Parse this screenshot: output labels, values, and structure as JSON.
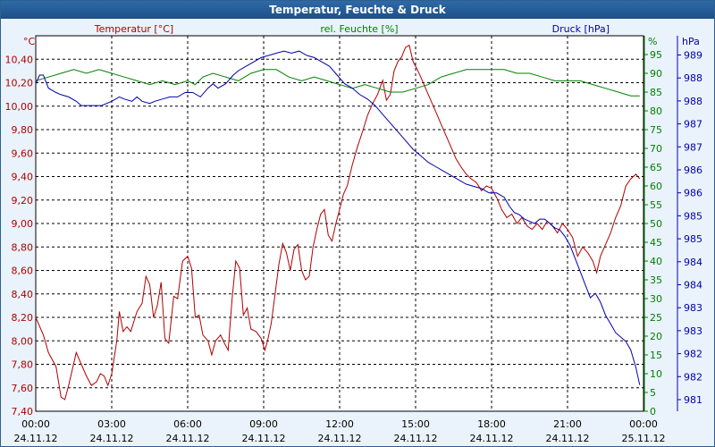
{
  "window": {
    "title": "Temperatur, Feuchte & Druck"
  },
  "chart_data": {
    "type": "line",
    "title": "Temperatur, Feuchte & Druck",
    "colors": {
      "temperature": "#b00000",
      "humidity": "#008000",
      "pressure": "#0000b0",
      "grid": "#000000",
      "background": "#ffffff"
    },
    "axes": {
      "temperature": {
        "label": "Temperatur [°C]",
        "unit": "°C",
        "range": [
          7.4,
          10.6
        ],
        "ticks": [
          "7,40",
          "7,60",
          "7,80",
          "8,00",
          "8,20",
          "8,40",
          "8,60",
          "8,80",
          "9,00",
          "9,20",
          "9,40",
          "9,60",
          "9,80",
          "10,00",
          "10,20",
          "10,40"
        ]
      },
      "humidity": {
        "label": "rel. Feuchte [%]",
        "unit": "%",
        "range": [
          0,
          100
        ],
        "ticks": [
          "0",
          "5",
          "10",
          "15",
          "20",
          "25",
          "30",
          "35",
          "40",
          "45",
          "50",
          "55",
          "60",
          "65",
          "70",
          "75",
          "80",
          "85",
          "90",
          "95"
        ]
      },
      "pressure": {
        "label": "Druck [hPa]",
        "unit": "hPa",
        "range": [
          980.6,
          989.2
        ],
        "ticks": [
          "981",
          "982",
          "982",
          "983",
          "983",
          "984",
          "984",
          "985",
          "985",
          "986",
          "986",
          "987",
          "987",
          "988",
          "988",
          "989"
        ]
      }
    },
    "x_ticks": [
      {
        "time": "00:00",
        "date": "24.11.12"
      },
      {
        "time": "03:00",
        "date": "24.11.12"
      },
      {
        "time": "06:00",
        "date": "24.11.12"
      },
      {
        "time": "09:00",
        "date": "24.11.12"
      },
      {
        "time": "12:00",
        "date": "24.11.12"
      },
      {
        "time": "15:00",
        "date": "24.11.12"
      },
      {
        "time": "18:00",
        "date": "24.11.12"
      },
      {
        "time": "21:00",
        "date": "24.11.12"
      },
      {
        "time": "00:00",
        "date": "25.11.12"
      }
    ],
    "x_range_hours": [
      0,
      24
    ],
    "series": [
      {
        "name": "Temperatur",
        "axis": "temperature",
        "points": [
          [
            0,
            8.2
          ],
          [
            0.3,
            8.05
          ],
          [
            0.5,
            7.9
          ],
          [
            0.8,
            7.78
          ],
          [
            1.0,
            7.52
          ],
          [
            1.15,
            7.5
          ],
          [
            1.3,
            7.62
          ],
          [
            1.6,
            7.9
          ],
          [
            1.8,
            7.8
          ],
          [
            2.0,
            7.7
          ],
          [
            2.2,
            7.62
          ],
          [
            2.4,
            7.65
          ],
          [
            2.55,
            7.72
          ],
          [
            2.7,
            7.7
          ],
          [
            2.85,
            7.62
          ],
          [
            3.0,
            7.72
          ],
          [
            3.2,
            8.0
          ],
          [
            3.3,
            8.25
          ],
          [
            3.45,
            8.08
          ],
          [
            3.6,
            8.12
          ],
          [
            3.75,
            8.08
          ],
          [
            4.0,
            8.25
          ],
          [
            4.2,
            8.32
          ],
          [
            4.35,
            8.55
          ],
          [
            4.5,
            8.48
          ],
          [
            4.65,
            8.2
          ],
          [
            4.8,
            8.3
          ],
          [
            4.95,
            8.5
          ],
          [
            5.1,
            8.02
          ],
          [
            5.25,
            7.98
          ],
          [
            5.45,
            8.38
          ],
          [
            5.6,
            8.36
          ],
          [
            5.8,
            8.68
          ],
          [
            6.0,
            8.72
          ],
          [
            6.15,
            8.62
          ],
          [
            6.3,
            8.2
          ],
          [
            6.45,
            8.22
          ],
          [
            6.6,
            8.05
          ],
          [
            6.8,
            8.0
          ],
          [
            6.95,
            7.88
          ],
          [
            7.1,
            8.0
          ],
          [
            7.3,
            8.05
          ],
          [
            7.45,
            7.98
          ],
          [
            7.6,
            7.92
          ],
          [
            7.75,
            8.35
          ],
          [
            7.9,
            8.68
          ],
          [
            8.05,
            8.62
          ],
          [
            8.2,
            8.22
          ],
          [
            8.35,
            8.28
          ],
          [
            8.5,
            8.1
          ],
          [
            8.7,
            8.08
          ],
          [
            8.9,
            8.02
          ],
          [
            9.05,
            7.92
          ],
          [
            9.15,
            8.0
          ],
          [
            9.3,
            8.15
          ],
          [
            9.45,
            8.4
          ],
          [
            9.6,
            8.65
          ],
          [
            9.75,
            8.83
          ],
          [
            9.9,
            8.75
          ],
          [
            10.05,
            8.6
          ],
          [
            10.2,
            8.78
          ],
          [
            10.35,
            8.82
          ],
          [
            10.5,
            8.6
          ],
          [
            10.65,
            8.52
          ],
          [
            10.8,
            8.55
          ],
          [
            10.95,
            8.8
          ],
          [
            11.1,
            8.95
          ],
          [
            11.25,
            9.08
          ],
          [
            11.4,
            9.12
          ],
          [
            11.55,
            8.9
          ],
          [
            11.7,
            8.85
          ],
          [
            11.85,
            9.0
          ],
          [
            12.0,
            9.12
          ],
          [
            12.15,
            9.25
          ],
          [
            12.3,
            9.32
          ],
          [
            12.5,
            9.5
          ],
          [
            12.7,
            9.65
          ],
          [
            12.9,
            9.78
          ],
          [
            13.1,
            9.92
          ],
          [
            13.3,
            10.02
          ],
          [
            13.5,
            10.1
          ],
          [
            13.7,
            10.22
          ],
          [
            13.85,
            10.05
          ],
          [
            14.0,
            10.1
          ],
          [
            14.15,
            10.3
          ],
          [
            14.3,
            10.38
          ],
          [
            14.45,
            10.42
          ],
          [
            14.6,
            10.5
          ],
          [
            14.75,
            10.52
          ],
          [
            14.9,
            10.38
          ],
          [
            15.05,
            10.32
          ],
          [
            15.2,
            10.25
          ],
          [
            15.4,
            10.15
          ],
          [
            15.6,
            10.05
          ],
          [
            15.8,
            9.95
          ],
          [
            16.0,
            9.85
          ],
          [
            16.2,
            9.75
          ],
          [
            16.4,
            9.65
          ],
          [
            16.6,
            9.55
          ],
          [
            16.8,
            9.48
          ],
          [
            17.0,
            9.42
          ],
          [
            17.2,
            9.38
          ],
          [
            17.4,
            9.35
          ],
          [
            17.6,
            9.28
          ],
          [
            17.8,
            9.32
          ],
          [
            18.0,
            9.3
          ],
          [
            18.2,
            9.22
          ],
          [
            18.4,
            9.12
          ],
          [
            18.6,
            9.05
          ],
          [
            18.8,
            9.08
          ],
          [
            19.0,
            9.0
          ],
          [
            19.2,
            9.05
          ],
          [
            19.4,
            8.98
          ],
          [
            19.6,
            8.95
          ],
          [
            19.8,
            9.0
          ],
          [
            20.0,
            8.95
          ],
          [
            20.2,
            9.02
          ],
          [
            20.4,
            8.98
          ],
          [
            20.6,
            8.92
          ],
          [
            20.8,
            9.0
          ],
          [
            21.0,
            8.95
          ],
          [
            21.2,
            8.88
          ],
          [
            21.4,
            8.72
          ],
          [
            21.6,
            8.8
          ],
          [
            21.8,
            8.75
          ],
          [
            22.0,
            8.68
          ],
          [
            22.15,
            8.58
          ],
          [
            22.3,
            8.72
          ],
          [
            22.5,
            8.82
          ],
          [
            22.7,
            8.92
          ],
          [
            22.9,
            9.05
          ],
          [
            23.1,
            9.15
          ],
          [
            23.3,
            9.32
          ],
          [
            23.5,
            9.38
          ],
          [
            23.7,
            9.42
          ],
          [
            23.85,
            9.38
          ]
        ]
      },
      {
        "name": "rel. Feuchte",
        "axis": "humidity",
        "points": [
          [
            0,
            88
          ],
          [
            0.5,
            89
          ],
          [
            1.0,
            90
          ],
          [
            1.5,
            91
          ],
          [
            2.0,
            90
          ],
          [
            2.5,
            91
          ],
          [
            3.0,
            90
          ],
          [
            3.5,
            89
          ],
          [
            4.0,
            88
          ],
          [
            4.5,
            87
          ],
          [
            5.0,
            88
          ],
          [
            5.5,
            87
          ],
          [
            6.0,
            88
          ],
          [
            6.3,
            87
          ],
          [
            6.6,
            89
          ],
          [
            7.0,
            90
          ],
          [
            7.5,
            89
          ],
          [
            8.0,
            88
          ],
          [
            8.5,
            90
          ],
          [
            9.0,
            91
          ],
          [
            9.5,
            91
          ],
          [
            10.0,
            89
          ],
          [
            10.5,
            88
          ],
          [
            11.0,
            89
          ],
          [
            11.5,
            88
          ],
          [
            12.0,
            87
          ],
          [
            12.5,
            86
          ],
          [
            13.0,
            87
          ],
          [
            13.5,
            86
          ],
          [
            14.0,
            85
          ],
          [
            14.5,
            85
          ],
          [
            15.0,
            86
          ],
          [
            15.5,
            87
          ],
          [
            16.0,
            89
          ],
          [
            16.5,
            90
          ],
          [
            17.0,
            91
          ],
          [
            17.5,
            91
          ],
          [
            18.0,
            91
          ],
          [
            18.5,
            91
          ],
          [
            19.0,
            90
          ],
          [
            19.5,
            90
          ],
          [
            20.0,
            89
          ],
          [
            20.5,
            88
          ],
          [
            21.0,
            88
          ],
          [
            21.5,
            88
          ],
          [
            22.0,
            87
          ],
          [
            22.5,
            86
          ],
          [
            23.0,
            85
          ],
          [
            23.5,
            84
          ],
          [
            23.85,
            84
          ]
        ]
      },
      {
        "name": "Druck",
        "axis": "pressure",
        "points": [
          [
            0,
            988.1
          ],
          [
            0.15,
            988.3
          ],
          [
            0.3,
            988.3
          ],
          [
            0.5,
            988.0
          ],
          [
            0.8,
            987.9
          ],
          [
            1.0,
            987.85
          ],
          [
            1.3,
            987.8
          ],
          [
            1.6,
            987.7
          ],
          [
            1.8,
            987.6
          ],
          [
            2.2,
            987.6
          ],
          [
            2.6,
            987.6
          ],
          [
            3.0,
            987.7
          ],
          [
            3.3,
            987.8
          ],
          [
            3.5,
            987.75
          ],
          [
            3.8,
            987.7
          ],
          [
            4.0,
            987.8
          ],
          [
            4.2,
            987.7
          ],
          [
            4.5,
            987.65
          ],
          [
            4.7,
            987.7
          ],
          [
            5.0,
            987.75
          ],
          [
            5.3,
            987.8
          ],
          [
            5.6,
            987.8
          ],
          [
            5.9,
            987.9
          ],
          [
            6.2,
            987.9
          ],
          [
            6.5,
            987.8
          ],
          [
            6.8,
            988.0
          ],
          [
            7.0,
            988.1
          ],
          [
            7.2,
            988.0
          ],
          [
            7.5,
            988.1
          ],
          [
            7.8,
            988.3
          ],
          [
            8.0,
            988.4
          ],
          [
            8.3,
            988.5
          ],
          [
            8.6,
            988.6
          ],
          [
            8.9,
            988.7
          ],
          [
            9.2,
            988.75
          ],
          [
            9.5,
            988.8
          ],
          [
            9.8,
            988.85
          ],
          [
            10.1,
            988.8
          ],
          [
            10.4,
            988.85
          ],
          [
            10.7,
            988.75
          ],
          [
            11.0,
            988.7
          ],
          [
            11.3,
            988.6
          ],
          [
            11.6,
            988.5
          ],
          [
            11.9,
            988.3
          ],
          [
            12.2,
            988.1
          ],
          [
            12.5,
            988.0
          ],
          [
            12.8,
            987.85
          ],
          [
            13.1,
            987.75
          ],
          [
            13.4,
            987.6
          ],
          [
            13.7,
            987.4
          ],
          [
            14.0,
            987.2
          ],
          [
            14.3,
            987.0
          ],
          [
            14.6,
            986.8
          ],
          [
            14.9,
            986.6
          ],
          [
            15.2,
            986.45
          ],
          [
            15.5,
            986.3
          ],
          [
            15.8,
            986.2
          ],
          [
            16.1,
            986.1
          ],
          [
            16.4,
            986.0
          ],
          [
            16.7,
            985.9
          ],
          [
            17.0,
            985.8
          ],
          [
            17.3,
            985.75
          ],
          [
            17.6,
            985.7
          ],
          [
            17.9,
            985.6
          ],
          [
            18.2,
            985.6
          ],
          [
            18.5,
            985.5
          ],
          [
            18.7,
            985.3
          ],
          [
            18.9,
            985.15
          ],
          [
            19.1,
            985.1
          ],
          [
            19.3,
            985.0
          ],
          [
            19.5,
            984.95
          ],
          [
            19.7,
            984.9
          ],
          [
            19.9,
            985.0
          ],
          [
            20.1,
            985.0
          ],
          [
            20.3,
            984.9
          ],
          [
            20.5,
            984.8
          ],
          [
            20.7,
            984.75
          ],
          [
            20.9,
            984.6
          ],
          [
            21.1,
            984.4
          ],
          [
            21.3,
            984.1
          ],
          [
            21.5,
            983.8
          ],
          [
            21.7,
            983.5
          ],
          [
            21.9,
            983.2
          ],
          [
            22.1,
            983.3
          ],
          [
            22.3,
            983.1
          ],
          [
            22.5,
            982.8
          ],
          [
            22.7,
            982.6
          ],
          [
            22.9,
            982.4
          ],
          [
            23.1,
            982.3
          ],
          [
            23.3,
            982.2
          ],
          [
            23.5,
            982.0
          ],
          [
            23.7,
            981.6
          ],
          [
            23.85,
            981.2
          ]
        ]
      }
    ]
  }
}
